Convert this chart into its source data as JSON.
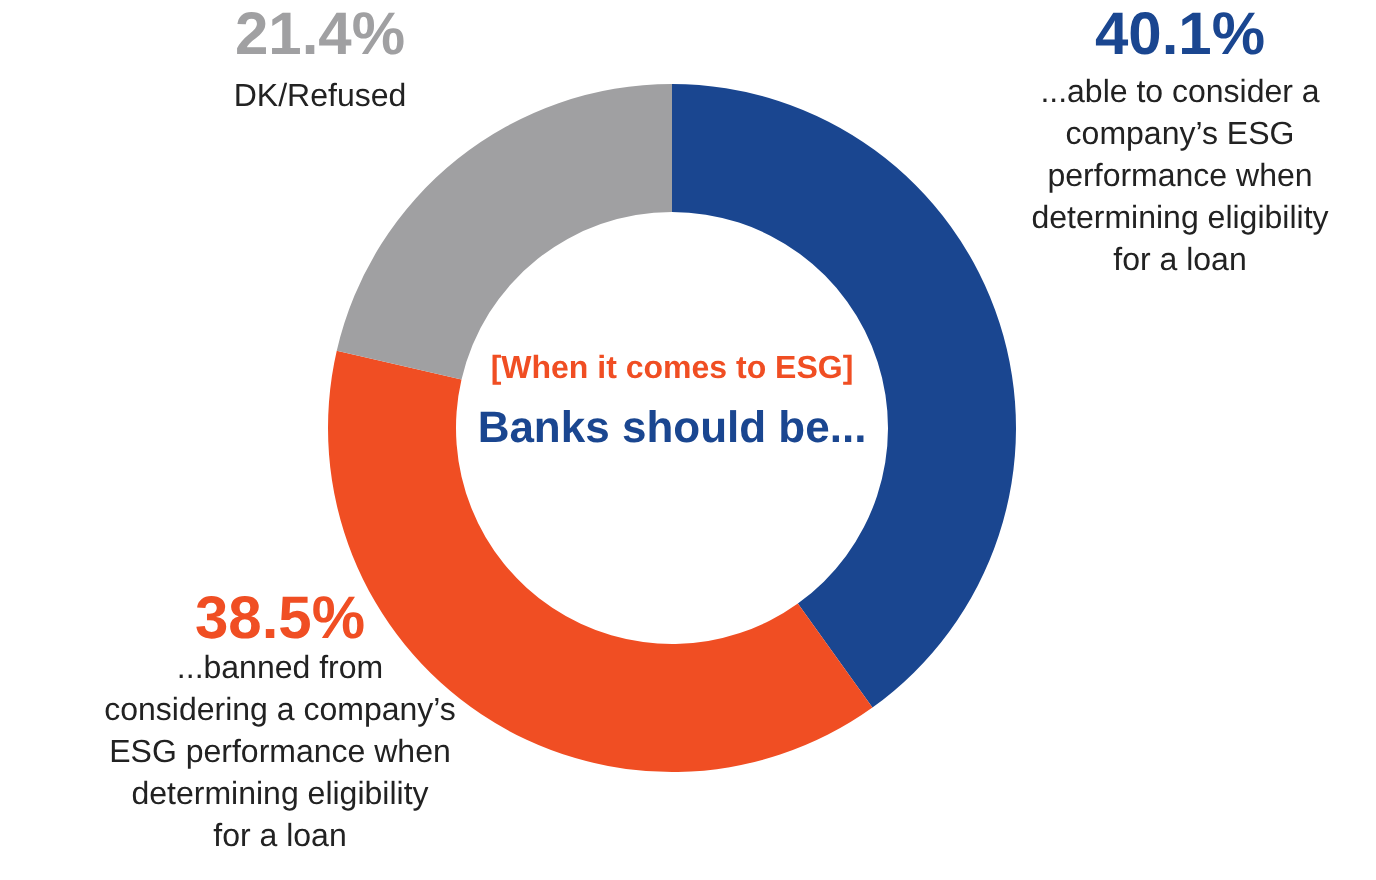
{
  "chart_data": {
    "type": "donut",
    "categories": [
      "...able to consider a company’s ESG performance when determining eligibility for a loan",
      "...banned from considering a company’s ESG performance when determining eligibility for a loan",
      "DK/Refused"
    ],
    "values": [
      40.1,
      38.5,
      21.4
    ],
    "colors": [
      "#1a4690",
      "#f04e23",
      "#a0a0a2"
    ],
    "value_labels": [
      "40.1%",
      "38.5%",
      "21.4%"
    ],
    "annotations": [
      "[When it comes to ESG]",
      "Banks should be..."
    ]
  }
}
